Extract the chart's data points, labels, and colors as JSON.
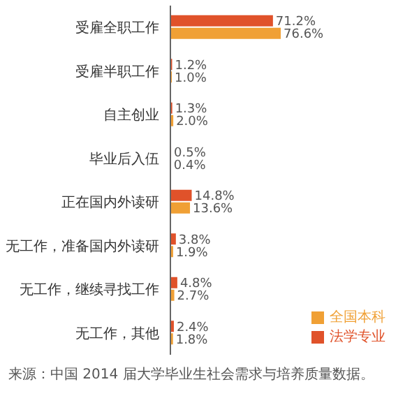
{
  "chart_data": {
    "type": "bar",
    "orientation": "horizontal",
    "categories": [
      "受雇全职工作",
      "受雇半职工作",
      "自主创业",
      "毕业后入伍",
      "正在国内外读研",
      "无工作，准备国内外读研",
      "无工作，继续寻找工作",
      "无工作，其他"
    ],
    "series": [
      {
        "name": "法学专业",
        "color": "#e0522a",
        "values": [
          71.2,
          1.2,
          1.3,
          0.5,
          14.8,
          3.8,
          4.8,
          2.4
        ],
        "value_labels": [
          "71.2%",
          "1.2%",
          "1.3%",
          "0.5%",
          "14.8%",
          "3.8%",
          "4.8%",
          "2.4%"
        ]
      },
      {
        "name": "全国本科",
        "color": "#f0a035",
        "values": [
          76.6,
          1.0,
          2.0,
          0.4,
          13.6,
          1.9,
          2.7,
          1.8
        ],
        "value_labels": [
          "76.6%",
          "1.0%",
          "2.0%",
          "0.4%",
          "13.6%",
          "1.9%",
          "2.7%",
          "1.8%"
        ]
      }
    ],
    "legend": "bottom right",
    "grid": false,
    "annotations": [
      "来源：中国 2014 届大学毕业生社会需求与培养质量数据。"
    ]
  }
}
